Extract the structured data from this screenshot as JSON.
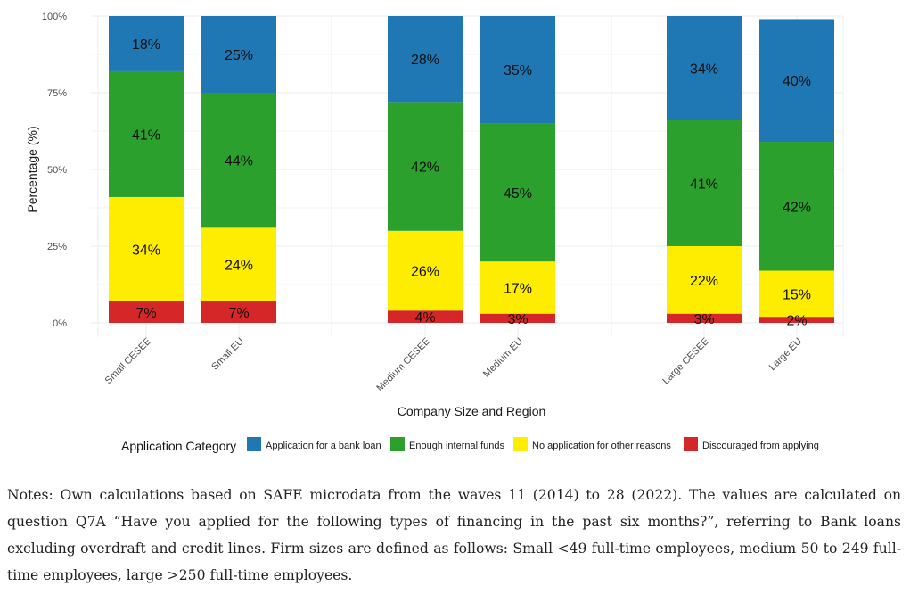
{
  "chart_data": {
    "type": "bar",
    "stacked": true,
    "categories": [
      "Small CESEE",
      "Small EU",
      "Medium CESEE",
      "Medium EU",
      "Large CESEE",
      "Large EU"
    ],
    "series": [
      {
        "name": "Discouraged from applying",
        "color": "#d62728",
        "values": [
          7,
          7,
          4,
          3,
          3,
          2
        ]
      },
      {
        "name": "No application for other reasons",
        "color": "#ffed00",
        "values": [
          34,
          24,
          26,
          17,
          22,
          15
        ]
      },
      {
        "name": "Enough internal funds",
        "color": "#2ca02c",
        "values": [
          41,
          44,
          42,
          45,
          41,
          42
        ]
      },
      {
        "name": "Application for a bank loan",
        "color": "#1f77b4",
        "values": [
          18,
          25,
          28,
          35,
          34,
          40
        ]
      }
    ],
    "xlabel": "Company Size and Region",
    "ylabel": "Percentage (%)",
    "ylim": [
      0,
      100
    ],
    "yticks": [
      "0%",
      "25%",
      "50%",
      "75%",
      "100%"
    ],
    "legend_title": "Application Category",
    "legend_order": [
      "Application for a bank loan",
      "Enough internal funds",
      "No application for other reasons",
      "Discouraged from applying"
    ],
    "legend_position": "bottom",
    "grid": true
  },
  "notes": "Notes: Own calculations based on SAFE microdata from the waves 11 (2014) to 28 (2022). The values are calculated on question Q7A “Have you applied for the following types of financing in the past six months?”, referring to Bank loans excluding overdraft and credit lines. Firm sizes are defined as follows: Small <49 full-time employees, medium 50 to 249 full-time employees, large >250 full-time employees."
}
